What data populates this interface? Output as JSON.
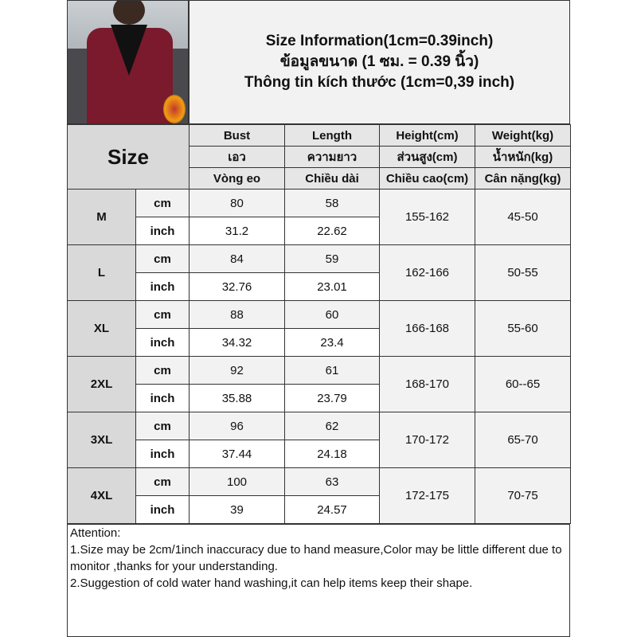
{
  "title": {
    "line1": "Size Information(1cm=0.39inch)",
    "line2": "ข้อมูลขนาด (1 ซม. = 0.39 นิ้ว)",
    "line3": "Thông tin kích thước (1cm=0,39 inch)"
  },
  "header": {
    "size_label": "Size",
    "columns": [
      {
        "en": "Bust",
        "th": "เอว",
        "vi": "Vòng eo"
      },
      {
        "en": "Length",
        "th": "ความยาว",
        "vi": "Chiều dài"
      },
      {
        "en": "Height(cm)",
        "th": "ส่วนสูง(cm)",
        "vi": "Chiều cao(cm)"
      },
      {
        "en": "Weight(kg)",
        "th": "น้ำหนัก(kg)",
        "vi": "Cân nặng(kg)"
      }
    ]
  },
  "units": {
    "cm": "cm",
    "inch": "inch"
  },
  "rows": [
    {
      "size": "M",
      "bust_cm": "80",
      "length_cm": "58",
      "bust_in": "31.2",
      "length_in": "22.62",
      "height": "155-162",
      "weight": "45-50"
    },
    {
      "size": "L",
      "bust_cm": "84",
      "length_cm": "59",
      "bust_in": "32.76",
      "length_in": "23.01",
      "height": "162-166",
      "weight": "50-55"
    },
    {
      "size": "XL",
      "bust_cm": "88",
      "length_cm": "60",
      "bust_in": "34.32",
      "length_in": "23.4",
      "height": "166-168",
      "weight": "55-60"
    },
    {
      "size": "2XL",
      "bust_cm": "92",
      "length_cm": "61",
      "bust_in": "35.88",
      "length_in": "23.79",
      "height": "168-170",
      "weight": "60--65"
    },
    {
      "size": "3XL",
      "bust_cm": "96",
      "length_cm": "62",
      "bust_in": "37.44",
      "length_in": "24.18",
      "height": "170-172",
      "weight": "65-70"
    },
    {
      "size": "4XL",
      "bust_cm": "100",
      "length_cm": "63",
      "bust_in": "39",
      "length_in": "24.57",
      "height": "172-175",
      "weight": "70-75"
    }
  ],
  "notes": {
    "heading": "Attention:",
    "items": [
      "1.Size may be 2cm/1inch inaccuracy due to hand measure,Color may be little different due to monitor ,thanks for your understanding.",
      "2.Suggestion of cold water hand washing,it can help items keep their shape."
    ]
  }
}
